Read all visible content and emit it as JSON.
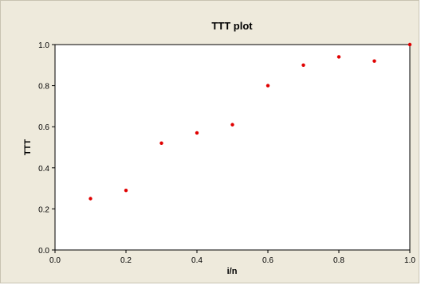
{
  "chart_data": {
    "type": "scatter",
    "title": "TTT plot",
    "xlabel": "i/n",
    "ylabel": "TTT",
    "xlim": [
      0.0,
      1.0
    ],
    "ylim": [
      0.0,
      1.0
    ],
    "x_ticks": [
      "0.0",
      "0.2",
      "0.4",
      "0.6",
      "0.8",
      "1.0"
    ],
    "y_ticks": [
      "0.0",
      "0.2",
      "0.4",
      "0.6",
      "0.8",
      "1.0"
    ],
    "grid": false,
    "legend": "none",
    "point_color": "#e00000",
    "series": [
      {
        "x": [
          0.1,
          0.2,
          0.3,
          0.4,
          0.5,
          0.6,
          0.7,
          0.8,
          0.9,
          1.0
        ],
        "y": [
          0.25,
          0.29,
          0.52,
          0.57,
          0.61,
          0.8,
          0.9,
          0.94,
          0.92,
          1.0
        ]
      }
    ]
  }
}
